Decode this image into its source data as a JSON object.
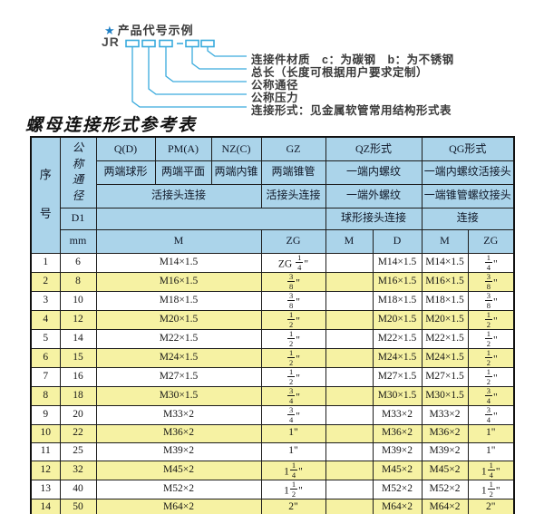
{
  "diagram": {
    "star": "★",
    "title": "产品代号示例",
    "code_prefix": "JR",
    "code_separator": "-",
    "line_color": "#3aabdd",
    "labels": [
      "连接件材质　c：为碳钢　b：为不锈钢",
      "总长（长度可根据用户要求定制）",
      "公称通径",
      "公称压力",
      "连接形式：见金属软管常用结构形式表"
    ]
  },
  "table_title": "螺母连接形式参考表",
  "colors": {
    "header_bg": "#abd4ea",
    "row_alt_bg": "#f6f2a3",
    "row_bg": "#ffffff",
    "accent_line": "#3aabdd"
  },
  "table": {
    "header": {
      "seq": "序号",
      "dn_vertical": "公称通径",
      "d1": "D1",
      "mm": "mm",
      "col_q": "Q(D)",
      "col_pm": "PM(A)",
      "col_nz": "NZ(C)",
      "col_gz": "GZ",
      "col_qz": "QZ形式",
      "col_qg": "QG形式",
      "q_desc": "两端球形",
      "pm_desc": "两端平面",
      "nz_desc": "两端内锥",
      "gz_desc": "两端锥管",
      "qz_desc1": "一端内螺纹",
      "qg_desc1": "一端内螺纹活接头",
      "union_conn": "活接头连接",
      "gz_conn": "活接头连接",
      "qz_desc2": "一端外螺纹",
      "qg_desc2": "一端锥管螺纹接头",
      "qz_conn": "球形接头连接",
      "qg_conn": "连接",
      "m_label": "M",
      "zg_label": "ZG",
      "qz_m": "M",
      "qz_d": "D",
      "qg_m": "M",
      "qg_zg": "ZG"
    },
    "rows": [
      [
        "1",
        "6",
        "M14×1.5",
        "ZG {1/4}\"",
        "",
        "M14×1.5",
        "M14×1.5",
        "{1/4}\""
      ],
      [
        "2",
        "8",
        "M16×1.5",
        "{3/8}\"",
        "",
        "M16×1.5",
        "M16×1.5",
        "{3/8}\""
      ],
      [
        "3",
        "10",
        "M18×1.5",
        "{3/8}\"",
        "",
        "M18×1.5",
        "M18×1.5",
        "{3/8}\""
      ],
      [
        "4",
        "12",
        "M20×1.5",
        "{1/2}\"",
        "",
        "M20×1.5",
        "M20×1.5",
        "{1/2}\""
      ],
      [
        "5",
        "14",
        "M22×1.5",
        "{1/2}\"",
        "",
        "M22×1.5",
        "M22×1.5",
        "{1/2}\""
      ],
      [
        "6",
        "15",
        "M24×1.5",
        "{1/2}\"",
        "",
        "M24×1.5",
        "M24×1.5",
        "{1/2}\""
      ],
      [
        "7",
        "16",
        "M27×1.5",
        "{1/2}\"",
        "",
        "M27×1.5",
        "M27×1.5",
        "{1/2}\""
      ],
      [
        "8",
        "18",
        "M30×1.5",
        "{3/4}\"",
        "",
        "M30×1.5",
        "M30×1.5",
        "{3/4}\""
      ],
      [
        "9",
        "20",
        "M33×2",
        "{3/4}\"",
        "",
        "M33×2",
        "M33×2",
        "{3/4}\""
      ],
      [
        "10",
        "22",
        "M36×2",
        "1\"",
        "",
        "M36×2",
        "M36×2",
        "1\""
      ],
      [
        "11",
        "25",
        "M39×2",
        "1\"",
        "",
        "M39×2",
        "M39×2",
        "1\""
      ],
      [
        "12",
        "32",
        "M45×2",
        "1{1/4}\"",
        "",
        "M45×2",
        "M45×2",
        "1{1/4}\""
      ],
      [
        "13",
        "40",
        "M52×2",
        "1{1/2}\"",
        "",
        "M52×2",
        "M52×2",
        "1{1/2}\""
      ],
      [
        "14",
        "50",
        "M64×2",
        "2\"",
        "",
        "M64×2",
        "M64×2",
        "2\""
      ]
    ]
  }
}
